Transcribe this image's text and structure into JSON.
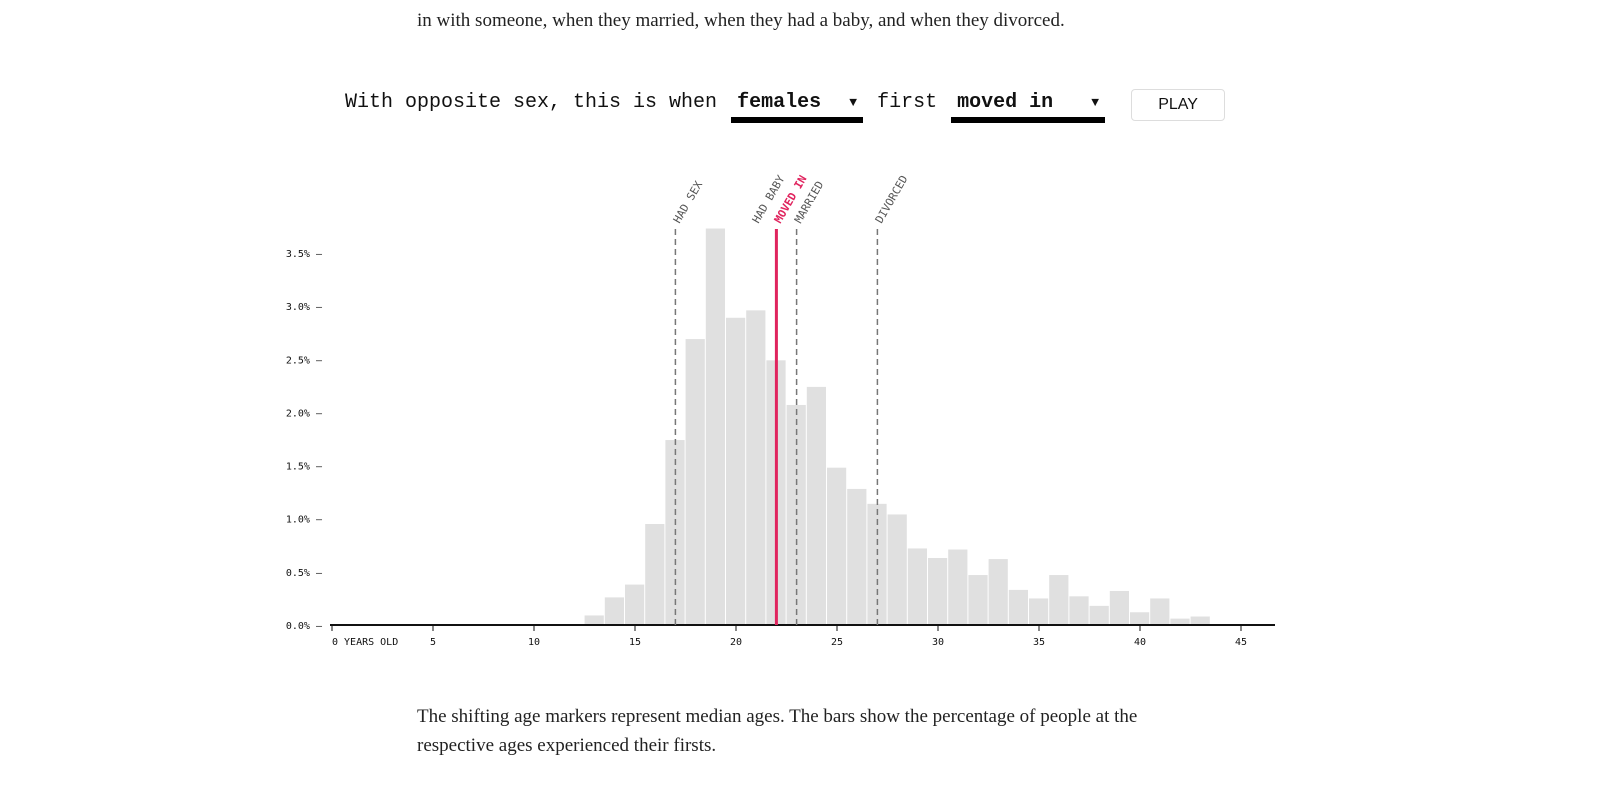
{
  "intro": "in with someone, when they married, when they had a baby, and when they divorced.",
  "controls": {
    "prefix": "With opposite sex, this is when",
    "sex_value": "females",
    "middle": "first",
    "event_value": "moved in",
    "play_label": "PLAY"
  },
  "outro": "The shifting age markers represent median ages. The bars show the percentage of people at the respective ages experienced their firsts.",
  "colors": {
    "bar": "#e0e0e0",
    "highlight": "#e0245e",
    "marker": "#777777",
    "axis": "#111111"
  },
  "chart_data": {
    "type": "bar",
    "xlabel_first_tick": "0 YEARS OLD",
    "xticks": [
      0,
      5,
      10,
      15,
      20,
      25,
      30,
      35,
      40,
      45
    ],
    "xlim": [
      0,
      45
    ],
    "yticks": [
      "0.0%",
      "0.5%",
      "1.0%",
      "1.5%",
      "2.0%",
      "2.5%",
      "3.0%",
      "3.5%"
    ],
    "ylim": [
      0,
      3.75
    ],
    "categories": [
      13,
      14,
      15,
      16,
      17,
      18,
      19,
      20,
      21,
      22,
      23,
      24,
      25,
      26,
      27,
      28,
      29,
      30,
      31,
      32,
      33,
      34,
      35,
      36,
      37,
      38,
      39,
      40,
      41,
      42,
      43
    ],
    "values": [
      0.09,
      0.26,
      0.38,
      0.95,
      1.74,
      2.69,
      3.73,
      2.89,
      2.96,
      2.49,
      2.07,
      2.24,
      1.48,
      1.28,
      1.14,
      1.04,
      0.72,
      0.63,
      0.71,
      0.47,
      0.62,
      0.33,
      0.25,
      0.47,
      0.27,
      0.18,
      0.32,
      0.12,
      0.25,
      0.06,
      0.08
    ],
    "markers": [
      {
        "label": "HAD SEX",
        "age": 17,
        "highlight": false
      },
      {
        "label": "HAD BABY",
        "age": 22,
        "highlight": false
      },
      {
        "label": "MOVED IN",
        "age": 22,
        "highlight": true
      },
      {
        "label": "MARRIED",
        "age": 23,
        "highlight": false
      },
      {
        "label": "DIVORCED",
        "age": 27,
        "highlight": false
      }
    ]
  }
}
